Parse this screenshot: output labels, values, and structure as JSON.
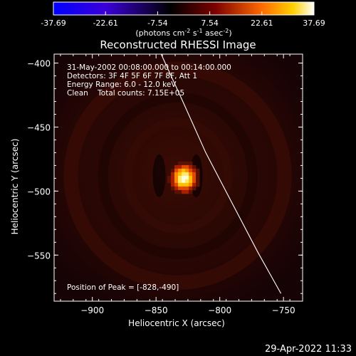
{
  "colorbar": {
    "ticks": [
      "-37.69",
      "-22.61",
      "-7.54",
      "7.54",
      "22.61",
      "37.69"
    ],
    "unit_main": "(photons cm",
    "unit_sup1": "-2",
    "unit_mid1": " s",
    "unit_sup2": "-1",
    "unit_mid2": " asec",
    "unit_sup3": "-2",
    "unit_end": ")"
  },
  "title": "Reconstructed RHESSI Image",
  "info": [
    "31-May-2002 00:08:00.000 to 00:14:00.000",
    "Detectors: 3F 4F 5F 6F 7F 8F, Att 1",
    "Energy Range: 6.0 - 12.0 keV",
    "Clean    Total counts: 7.15E+05"
  ],
  "peak_label": "Position of Peak = [-828,-490]",
  "timestamp": "29-Apr-2022 11:33",
  "chart_data": {
    "type": "heatmap",
    "title": "Reconstructed RHESSI Image",
    "xlabel": "Heliocentric X (arcsec)",
    "ylabel": "Heliocentric Y (arcsec)",
    "xlim": [
      -930,
      -735
    ],
    "ylim": [
      -586,
      -393
    ],
    "x_ticks": [
      -900,
      -850,
      -800,
      -750
    ],
    "y_ticks": [
      -400,
      -450,
      -500,
      -550
    ],
    "x_tick_labels": [
      "−900",
      "−850",
      "−800",
      "−750"
    ],
    "y_tick_labels": [
      "−400",
      "−450",
      "−500",
      "−550"
    ],
    "peak": {
      "x": -828,
      "y": -490
    },
    "limb_curve": [
      [
        -846,
        -393
      ],
      [
        -829,
        -430
      ],
      [
        -811,
        -470
      ],
      [
        -790,
        -510
      ],
      [
        -770,
        -548
      ],
      [
        -752,
        -580
      ]
    ],
    "color_range": [
      -37.69,
      37.69
    ],
    "colors": {
      "background": "#000000",
      "foreground": "#ffffff",
      "map_base": "#2a0703"
    }
  }
}
